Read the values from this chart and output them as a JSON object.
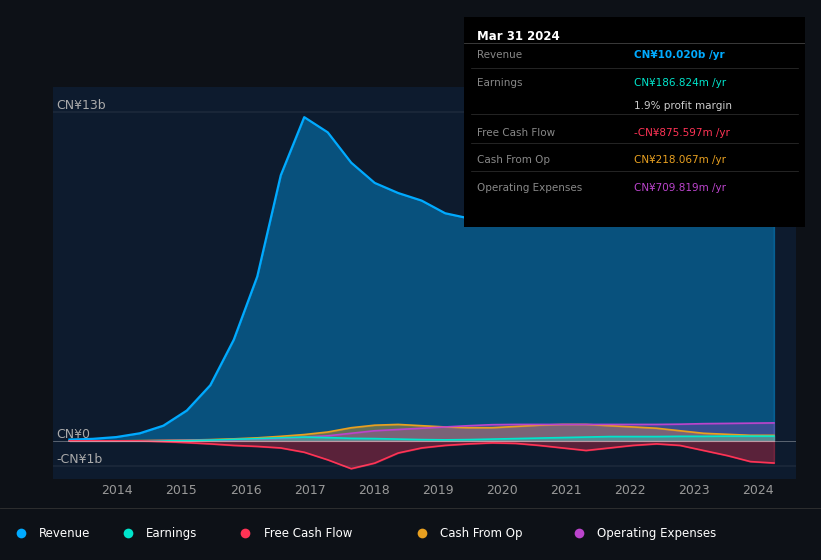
{
  "background_color": "#0d1117",
  "plot_bg_color": "#0d1b2e",
  "colors": {
    "revenue": "#00aaff",
    "earnings": "#00e5cc",
    "free_cash_flow": "#ff3355",
    "cash_from_op": "#e8a020",
    "operating_expenses": "#bb44cc"
  },
  "info_box_title": "Mar 31 2024",
  "info_box_rows": [
    {
      "label": "Revenue",
      "value": "CN¥10.020b /yr",
      "color": "#00aaff",
      "divider": true
    },
    {
      "label": "Earnings",
      "value": "CN¥186.824m /yr",
      "color": "#00e5cc",
      "divider": false
    },
    {
      "label": "",
      "value": "1.9% profit margin",
      "color": "#cccccc",
      "divider": true
    },
    {
      "label": "Free Cash Flow",
      "value": "-CN¥875.597m /yr",
      "color": "#ff3355",
      "divider": true
    },
    {
      "label": "Cash From Op",
      "value": "CN¥218.067m /yr",
      "color": "#e8a020",
      "divider": true
    },
    {
      "label": "Operating Expenses",
      "value": "CN¥709.819m /yr",
      "color": "#bb44cc",
      "divider": false
    }
  ],
  "x_ticks": [
    2014,
    2015,
    2016,
    2017,
    2018,
    2019,
    2020,
    2021,
    2022,
    2023,
    2024
  ],
  "x_tick_labels": [
    "2014",
    "2015",
    "2016",
    "2017",
    "2018",
    "2019",
    "2020",
    "2021",
    "2022",
    "2023",
    "2024"
  ],
  "ylim": [
    -1.5,
    14.0
  ],
  "xlim": [
    2013.0,
    2024.6
  ],
  "ylabel_top": "CN¥13b",
  "ylabel_zero": "CN¥0",
  "ylabel_neg": "-CN¥1b",
  "y_top_val": 13.0,
  "y_zero_val": 0.0,
  "y_neg_val": -1.0,
  "revenue": [
    0.05,
    0.08,
    0.15,
    0.3,
    0.6,
    1.2,
    2.2,
    4.0,
    6.5,
    10.5,
    12.8,
    12.2,
    11.0,
    10.2,
    9.8,
    9.5,
    9.0,
    8.8,
    8.8,
    8.9,
    9.0,
    9.2,
    9.4,
    9.6,
    9.7,
    9.8,
    9.85,
    9.9,
    10.0,
    10.0,
    10.02
  ],
  "earnings": [
    0.0,
    0.0,
    0.0,
    0.0,
    0.0,
    0.01,
    0.03,
    0.06,
    0.09,
    0.12,
    0.15,
    0.13,
    0.1,
    0.09,
    0.07,
    0.05,
    0.04,
    0.05,
    0.07,
    0.09,
    0.11,
    0.13,
    0.15,
    0.17,
    0.17,
    0.17,
    0.18,
    0.18,
    0.187,
    0.187,
    0.187
  ],
  "free_cash_flow": [
    0.0,
    0.0,
    0.0,
    0.0,
    -0.03,
    -0.07,
    -0.12,
    -0.18,
    -0.22,
    -0.28,
    -0.45,
    -0.75,
    -1.1,
    -0.88,
    -0.48,
    -0.28,
    -0.18,
    -0.12,
    -0.08,
    -0.1,
    -0.18,
    -0.28,
    -0.38,
    -0.28,
    -0.18,
    -0.12,
    -0.18,
    -0.38,
    -0.58,
    -0.82,
    -0.876
  ],
  "cash_from_op": [
    0.0,
    0.0,
    0.0,
    0.01,
    0.02,
    0.03,
    0.05,
    0.08,
    0.12,
    0.18,
    0.25,
    0.35,
    0.52,
    0.62,
    0.65,
    0.6,
    0.55,
    0.52,
    0.52,
    0.57,
    0.62,
    0.65,
    0.65,
    0.6,
    0.55,
    0.5,
    0.4,
    0.3,
    0.26,
    0.22,
    0.218
  ],
  "operating_expenses": [
    0.0,
    0.0,
    0.0,
    0.0,
    0.01,
    0.02,
    0.03,
    0.05,
    0.08,
    0.1,
    0.15,
    0.2,
    0.3,
    0.4,
    0.45,
    0.5,
    0.55,
    0.6,
    0.64,
    0.65,
    0.65,
    0.65,
    0.65,
    0.65,
    0.65,
    0.65,
    0.66,
    0.68,
    0.69,
    0.7,
    0.71
  ],
  "legend_items": [
    {
      "label": "Revenue",
      "color": "#00aaff"
    },
    {
      "label": "Earnings",
      "color": "#00e5cc"
    },
    {
      "label": "Free Cash Flow",
      "color": "#ff3355"
    },
    {
      "label": "Cash From Op",
      "color": "#e8a020"
    },
    {
      "label": "Operating Expenses",
      "color": "#bb44cc"
    }
  ]
}
